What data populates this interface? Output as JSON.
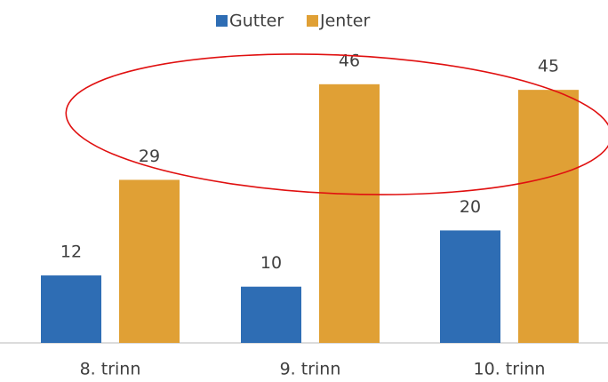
{
  "chart_data": {
    "type": "bar",
    "categories": [
      "8. trinn",
      "9. trinn",
      "10. trinn"
    ],
    "series": [
      {
        "name": "Gutter",
        "color": "#2e6db4",
        "values": [
          12,
          10,
          20
        ]
      },
      {
        "name": "Jenter",
        "color": "#e0a035",
        "values": [
          29,
          46,
          45
        ]
      }
    ],
    "legend": "top"
  }
}
